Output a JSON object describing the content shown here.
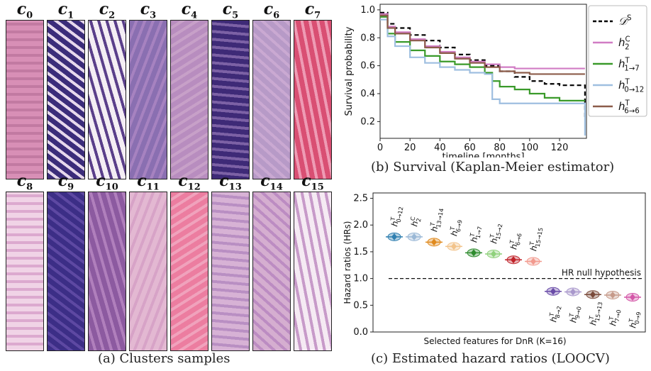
{
  "panel_a": {
    "caption": "(a) Clusters samples",
    "clusters_row1": [
      {
        "sym": "c",
        "sub": "0",
        "bg": "#d88fb6",
        "band": "#c27aa2"
      },
      {
        "sym": "c",
        "sub": "1",
        "bg": "#3b2c7a",
        "band": "#e6d8ec"
      },
      {
        "sym": "c",
        "sub": "2",
        "bg": "#f4eef4",
        "band": "#5a3f8a"
      },
      {
        "sym": "c",
        "sub": "3",
        "bg": "#8a6fb1",
        "band": "#a682c0"
      },
      {
        "sym": "c",
        "sub": "4",
        "bg": "#b88dbf",
        "band": "#c7a0c8"
      },
      {
        "sym": "c",
        "sub": "5",
        "bg": "#3e2a77",
        "band": "#7c61a5"
      },
      {
        "sym": "c",
        "sub": "6",
        "bg": "#b79ac7",
        "band": "#caa9d2"
      },
      {
        "sym": "c",
        "sub": "7",
        "bg": "#d94f73",
        "band": "#ee9bb4"
      }
    ],
    "clusters_row2": [
      {
        "sym": "c",
        "sub": "8",
        "bg": "#f0d3e6",
        "band": "#dca9cf"
      },
      {
        "sym": "c",
        "sub": "9",
        "bg": "#3c2e86",
        "band": "#5d48a2"
      },
      {
        "sym": "c",
        "sub": "10",
        "bg": "#8c5aa0",
        "band": "#b07fbc"
      },
      {
        "sym": "c",
        "sub": "11",
        "bg": "#e3b8d2",
        "band": "#d7a3c7"
      },
      {
        "sym": "c",
        "sub": "12",
        "bg": "#ec7da0",
        "band": "#f0a2bc"
      },
      {
        "sym": "c",
        "sub": "13",
        "bg": "#d7b2d5",
        "band": "#b98fc3"
      },
      {
        "sym": "c",
        "sub": "14",
        "bg": "#d5aed0",
        "band": "#bc8cc2"
      },
      {
        "sym": "c",
        "sub": "15",
        "bg": "#f5eaf3",
        "band": "#c79ac9"
      }
    ]
  },
  "panel_b": {
    "caption": "(b) Survival (Kaplan-Meier estimator)",
    "chart_data": {
      "type": "line",
      "xlabel": "timeline [months]",
      "ylabel": "Survival probability",
      "xlim": [
        0,
        138
      ],
      "ylim": [
        0.08,
        1.04
      ],
      "xticks": [
        0,
        20,
        40,
        60,
        80,
        100,
        120
      ],
      "yticks": [
        0.2,
        0.4,
        0.6,
        0.8,
        1.0
      ],
      "legend_position": "right",
      "series": [
        {
          "name": "D^S",
          "legend_main": "𝒟",
          "legend_sup": "S",
          "legend_sub": "",
          "color": "#000000",
          "dash": "6,4",
          "x": [
            0,
            5,
            10,
            20,
            30,
            40,
            50,
            60,
            70,
            80,
            90,
            100,
            110,
            120,
            130,
            136,
            137
          ],
          "y": [
            0.98,
            0.9,
            0.87,
            0.82,
            0.78,
            0.73,
            0.68,
            0.64,
            0.6,
            0.56,
            0.52,
            0.49,
            0.47,
            0.46,
            0.46,
            0.46,
            0.22
          ]
        },
        {
          "name": "h_2^C",
          "legend_main": "h",
          "legend_sup": "C",
          "legend_sub": "2",
          "color": "#d17cc4",
          "dash": "",
          "x": [
            0,
            5,
            10,
            20,
            30,
            40,
            50,
            60,
            70,
            80,
            90,
            100,
            110,
            120,
            137
          ],
          "y": [
            0.97,
            0.88,
            0.84,
            0.79,
            0.74,
            0.7,
            0.66,
            0.63,
            0.61,
            0.59,
            0.58,
            0.58,
            0.58,
            0.58,
            0.58
          ]
        },
        {
          "name": "h_{1→7}^T",
          "legend_main": "h",
          "legend_sup": "T",
          "legend_sub": "1→7",
          "color": "#3a9a2a",
          "dash": "",
          "x": [
            0,
            5,
            10,
            20,
            30,
            40,
            50,
            60,
            70,
            75,
            80,
            90,
            100,
            110,
            120,
            137
          ],
          "y": [
            0.95,
            0.83,
            0.77,
            0.71,
            0.67,
            0.63,
            0.61,
            0.59,
            0.55,
            0.49,
            0.45,
            0.43,
            0.4,
            0.37,
            0.35,
            0.35
          ]
        },
        {
          "name": "h_{0→12}^T",
          "legend_main": "h",
          "legend_sup": "T",
          "legend_sub": "0→12",
          "color": "#9fbfe0",
          "dash": "",
          "x": [
            0,
            5,
            10,
            20,
            30,
            40,
            50,
            60,
            70,
            75,
            80,
            90,
            100,
            110,
            120,
            136,
            137
          ],
          "y": [
            0.93,
            0.81,
            0.74,
            0.66,
            0.62,
            0.59,
            0.57,
            0.55,
            0.54,
            0.36,
            0.33,
            0.33,
            0.33,
            0.33,
            0.33,
            0.33,
            0.1
          ]
        },
        {
          "name": "h_{6→6}^T",
          "legend_main": "h",
          "legend_sup": "T",
          "legend_sub": "6→6",
          "color": "#8c5c4a",
          "dash": "",
          "x": [
            0,
            5,
            10,
            20,
            30,
            40,
            50,
            60,
            70,
            80,
            90,
            100,
            110,
            120,
            137
          ],
          "y": [
            0.96,
            0.87,
            0.83,
            0.78,
            0.73,
            0.69,
            0.65,
            0.62,
            0.59,
            0.56,
            0.55,
            0.54,
            0.54,
            0.54,
            0.54
          ]
        }
      ]
    }
  },
  "panel_c": {
    "caption": "(c) Estimated hazard ratios (LOOCV)",
    "chart_data": {
      "type": "scatter",
      "xlabel": "Selected features for DnR (K=16)",
      "ylabel": "Hazard ratios (HRs)",
      "ylim": [
        0.0,
        2.6
      ],
      "yticks": [
        0.0,
        0.5,
        1.0,
        1.5,
        2.0,
        2.5
      ],
      "null_line": 1.0,
      "null_label": "HR null hypothesis",
      "points": [
        {
          "label": "h_{0→12}^T",
          "main": "h",
          "sup": "T",
          "sub": "0→12",
          "value": 1.78,
          "color": "#2f7fb0",
          "label_pos": "above"
        },
        {
          "label": "h_2^C",
          "main": "h",
          "sup": "C",
          "sub": "2",
          "value": 1.78,
          "color": "#9ab8d6",
          "label_pos": "above"
        },
        {
          "label": "h_{13→14}^T",
          "main": "h",
          "sup": "T",
          "sub": "13→14",
          "value": 1.68,
          "color": "#e08a1e",
          "label_pos": "above"
        },
        {
          "label": "h_{6→9}^T",
          "main": "h",
          "sup": "T",
          "sub": "6→9",
          "value": 1.6,
          "color": "#f2c38a",
          "label_pos": "above"
        },
        {
          "label": "h_{1→7}^T",
          "main": "h",
          "sup": "T",
          "sub": "1→7",
          "value": 1.48,
          "color": "#2e8b2e",
          "label_pos": "above"
        },
        {
          "label": "h_{15→2}^T",
          "main": "h",
          "sup": "T",
          "sub": "15→2",
          "value": 1.46,
          "color": "#8fd17c",
          "label_pos": "above"
        },
        {
          "label": "h_{6→6}^T",
          "main": "h",
          "sup": "T",
          "sub": "6→6",
          "value": 1.35,
          "color": "#c0232a",
          "label_pos": "above"
        },
        {
          "label": "h_{15→15}^T",
          "main": "h",
          "sup": "T",
          "sub": "15→15",
          "value": 1.32,
          "color": "#f29a8e",
          "label_pos": "above"
        },
        {
          "label": "h_{8→2}^T",
          "main": "h",
          "sup": "T",
          "sub": "8→2",
          "value": 0.76,
          "color": "#6a4ca8",
          "label_pos": "below"
        },
        {
          "label": "h_{9→0}^T",
          "main": "h",
          "sup": "T",
          "sub": "9→0",
          "value": 0.75,
          "color": "#a998cc",
          "label_pos": "below"
        },
        {
          "label": "h_{15→13}^T",
          "main": "h",
          "sup": "T",
          "sub": "15→13",
          "value": 0.7,
          "color": "#7a4a3a",
          "label_pos": "below"
        },
        {
          "label": "h_{7→0}^T",
          "main": "h",
          "sup": "T",
          "sub": "7→0",
          "value": 0.69,
          "color": "#c69a8a",
          "label_pos": "below"
        },
        {
          "label": "h_{0→9}^T",
          "main": "h",
          "sup": "T",
          "sub": "0→9",
          "value": 0.65,
          "color": "#d357a8",
          "label_pos": "below"
        }
      ]
    }
  }
}
